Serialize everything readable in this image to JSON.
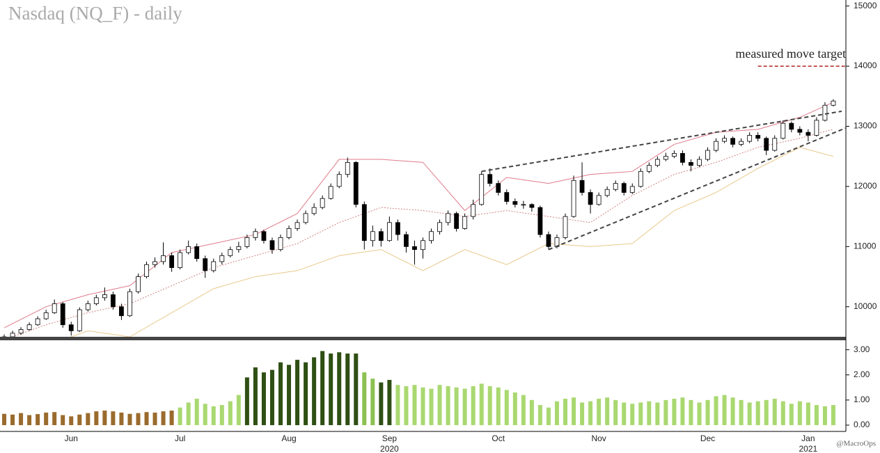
{
  "chart_data": [
    {
      "type": "candlestick",
      "title": "Nasdaq (NQ_F) - daily",
      "xlim": [
        -0.5,
        100.5
      ],
      "ylim": [
        9500,
        15100
      ],
      "yticks": [
        10000,
        11000,
        12000,
        13000,
        14000,
        15000
      ],
      "up_color": "#ffffff",
      "down_color": "#000000",
      "open": [
        9460,
        9500,
        9560,
        9620,
        9700,
        9800,
        9900,
        10050,
        9700,
        9600,
        9950,
        10050,
        10150,
        10200,
        10000,
        9850,
        10250,
        10500,
        10700,
        10750,
        10850,
        10650,
        10900,
        11000,
        10800,
        10600,
        10750,
        10850,
        10950,
        11000,
        11150,
        11250,
        11100,
        10950,
        11150,
        11300,
        11400,
        11550,
        11650,
        11800,
        12000,
        12200,
        12400,
        11700,
        11100,
        11250,
        11100,
        11400,
        11200,
        11000,
        10950,
        11100,
        11250,
        11400,
        11550,
        11300,
        11500,
        11700,
        12200,
        12050,
        11900,
        11750,
        11700,
        11700,
        11650,
        11200,
        11000,
        11150,
        11500,
        12100,
        11900,
        11700,
        11850,
        11950,
        12050,
        11900,
        12000,
        12250,
        12350,
        12450,
        12500,
        12550,
        12400,
        12350,
        12450,
        12600,
        12750,
        12800,
        12700,
        12750,
        12850,
        12800,
        12600,
        12800,
        13050,
        12950,
        12900,
        12850,
        13100,
        13350
      ],
      "high": [
        9540,
        9600,
        9660,
        9740,
        9840,
        9950,
        10120,
        10080,
        9750,
        9990,
        10100,
        10200,
        10320,
        10250,
        10050,
        10300,
        10550,
        10750,
        10820,
        11070,
        10900,
        10950,
        11100,
        11050,
        10850,
        10800,
        10900,
        11000,
        11080,
        11200,
        11300,
        11280,
        11150,
        11200,
        11350,
        11450,
        11600,
        11720,
        11850,
        12050,
        12250,
        12480,
        12420,
        11750,
        11350,
        11300,
        11500,
        11450,
        11250,
        11100,
        11150,
        11300,
        11450,
        11600,
        11580,
        11550,
        11780,
        12250,
        12300,
        12100,
        11950,
        11800,
        11760,
        11720,
        11680,
        11250,
        11200,
        11550,
        12180,
        12400,
        11950,
        11900,
        12000,
        12100,
        12080,
        12050,
        12300,
        12400,
        12500,
        12560,
        12600,
        12600,
        12450,
        12500,
        12650,
        12800,
        12850,
        12830,
        12800,
        12900,
        12900,
        12830,
        12850,
        13100,
        13080,
        13000,
        12950,
        13150,
        13400,
        13450
      ],
      "low": [
        9430,
        9470,
        9530,
        9600,
        9680,
        9780,
        9880,
        9650,
        9520,
        9580,
        9920,
        10020,
        10100,
        9950,
        9780,
        9830,
        10220,
        10470,
        10650,
        10700,
        10580,
        10620,
        10870,
        10750,
        10480,
        10570,
        10700,
        10820,
        10900,
        10970,
        11100,
        11050,
        10880,
        10920,
        11120,
        11260,
        11370,
        11520,
        11620,
        11780,
        11970,
        12150,
        11650,
        10950,
        11000,
        11000,
        11080,
        11100,
        10900,
        10700,
        10800,
        11050,
        11200,
        11350,
        11250,
        11280,
        11450,
        11680,
        12000,
        11850,
        11700,
        11650,
        11630,
        11580,
        11150,
        10950,
        10970,
        11120,
        11480,
        11850,
        11550,
        11680,
        11820,
        11920,
        11850,
        11870,
        11980,
        12220,
        12320,
        12420,
        12470,
        12350,
        12250,
        12320,
        12420,
        12570,
        12720,
        12650,
        12670,
        12720,
        12750,
        12520,
        12580,
        12780,
        12900,
        12850,
        12750,
        12830,
        13080,
        13330
      ],
      "close": [
        9500,
        9560,
        9620,
        9700,
        9800,
        9900,
        10050,
        9700,
        9600,
        9950,
        10050,
        10150,
        10200,
        10000,
        9850,
        10250,
        10500,
        10700,
        10750,
        10850,
        10650,
        10900,
        11000,
        10800,
        10600,
        10750,
        10850,
        10950,
        11000,
        11150,
        11250,
        11100,
        10950,
        11150,
        11300,
        11400,
        11550,
        11650,
        11800,
        12000,
        12200,
        12400,
        11700,
        11100,
        11250,
        11100,
        11400,
        11200,
        11000,
        10950,
        11100,
        11250,
        11400,
        11550,
        11300,
        11500,
        11700,
        12200,
        12050,
        11900,
        11750,
        11700,
        11700,
        11650,
        11200,
        11000,
        11150,
        11500,
        12100,
        11900,
        11700,
        11850,
        11950,
        12050,
        11900,
        12000,
        12250,
        12350,
        12450,
        12500,
        12550,
        12400,
        12350,
        12450,
        12600,
        12750,
        12800,
        12700,
        12750,
        12850,
        12800,
        12600,
        12800,
        13050,
        12950,
        12900,
        12850,
        13100,
        13350,
        13420
      ],
      "bands": {
        "x": [
          0,
          5,
          10,
          15,
          20,
          25,
          30,
          35,
          40,
          45,
          50,
          55,
          60,
          65,
          70,
          75,
          80,
          85,
          90,
          95,
          99
        ],
        "upper": [
          9650,
          10000,
          10200,
          10350,
          10900,
          11050,
          11200,
          11550,
          12450,
          12450,
          12400,
          11600,
          12150,
          12050,
          12200,
          12250,
          12700,
          12900,
          12950,
          13150,
          13400
        ],
        "middle": [
          9450,
          9700,
          9900,
          10050,
          10350,
          10650,
          10850,
          11050,
          11400,
          11650,
          11600,
          11500,
          11600,
          11500,
          11400,
          11850,
          12200,
          12400,
          12650,
          12800,
          12950
        ],
        "lower": [
          9300,
          9350,
          9600,
          9500,
          9900,
          10300,
          10500,
          10600,
          10850,
          10950,
          10600,
          10950,
          10700,
          11050,
          11000,
          11050,
          11600,
          11900,
          12300,
          12650,
          12500
        ],
        "upper_color": "#e07a8a",
        "middle_color": "#d08080",
        "lower_color": "#e8c98a"
      },
      "trendlines": [
        {
          "x": [
            57,
            100
          ],
          "y": [
            12250,
            13250
          ]
        },
        {
          "x": [
            65,
            101.5
          ],
          "y": [
            10950,
            13030
          ]
        }
      ],
      "target": {
        "label": "measured move target",
        "value": 14000,
        "x": [
          90,
          100.5
        ],
        "color": "#b22222"
      },
      "watermark": "@MacroOps"
    },
    {
      "type": "bar",
      "xlim": [
        -0.5,
        100.5
      ],
      "ylim": [
        -0.25,
        3.35
      ],
      "yticks": [
        {
          "value": 0,
          "label": "0.00"
        },
        {
          "value": 1,
          "label": "1.00"
        },
        {
          "value": 2,
          "label": "2.00"
        },
        {
          "value": 3,
          "label": "3.00"
        }
      ],
      "values": [
        0.45,
        0.42,
        0.48,
        0.4,
        0.44,
        0.5,
        0.52,
        0.4,
        0.35,
        0.42,
        0.48,
        0.55,
        0.58,
        0.55,
        0.5,
        0.45,
        0.48,
        0.52,
        0.5,
        0.55,
        0.58,
        0.7,
        0.9,
        1.05,
        0.85,
        0.75,
        0.8,
        0.95,
        1.2,
        1.9,
        2.3,
        2.1,
        2.2,
        2.5,
        2.4,
        2.6,
        2.5,
        2.7,
        2.95,
        2.85,
        2.9,
        2.85,
        2.85,
        2.1,
        1.85,
        1.7,
        1.8,
        1.6,
        1.55,
        1.6,
        1.5,
        1.45,
        1.6,
        1.55,
        1.5,
        1.45,
        1.55,
        1.65,
        1.55,
        1.5,
        1.4,
        1.3,
        1.2,
        1.0,
        0.8,
        0.7,
        0.95,
        1.05,
        1.1,
        0.9,
        0.95,
        1.05,
        1.1,
        1.0,
        0.9,
        0.85,
        0.9,
        0.95,
        0.9,
        1.0,
        1.05,
        1.1,
        1.0,
        0.9,
        1.0,
        1.15,
        1.2,
        1.1,
        1.0,
        0.9,
        0.95,
        1.0,
        1.05,
        0.95,
        0.85,
        0.95,
        0.9,
        0.8,
        0.75,
        0.8
      ],
      "color_runs": [
        {
          "color": "#9a6b2d",
          "count": 21
        },
        {
          "color": "#a9d870",
          "count": 8
        },
        {
          "color": "#2f4f14",
          "count": 14
        },
        {
          "color": "#8cc152",
          "count": 2
        },
        {
          "color": "#2f4f14",
          "count": 2
        },
        {
          "color": "#a9d870",
          "count": 53
        }
      ],
      "xticks": [
        {
          "value": 8,
          "label": "Jun"
        },
        {
          "value": 21,
          "label": "Jul"
        },
        {
          "value": 34,
          "label": "Aug"
        },
        {
          "value": 46,
          "label": "Sep"
        },
        {
          "value": 59,
          "label": "Oct"
        },
        {
          "value": 71,
          "label": "Nov"
        },
        {
          "value": 84,
          "label": "Dec"
        },
        {
          "value": 96,
          "label": "Jan"
        }
      ],
      "year_labels": [
        {
          "value": 46,
          "label": "2020"
        },
        {
          "value": 96,
          "label": "2021"
        }
      ]
    }
  ]
}
